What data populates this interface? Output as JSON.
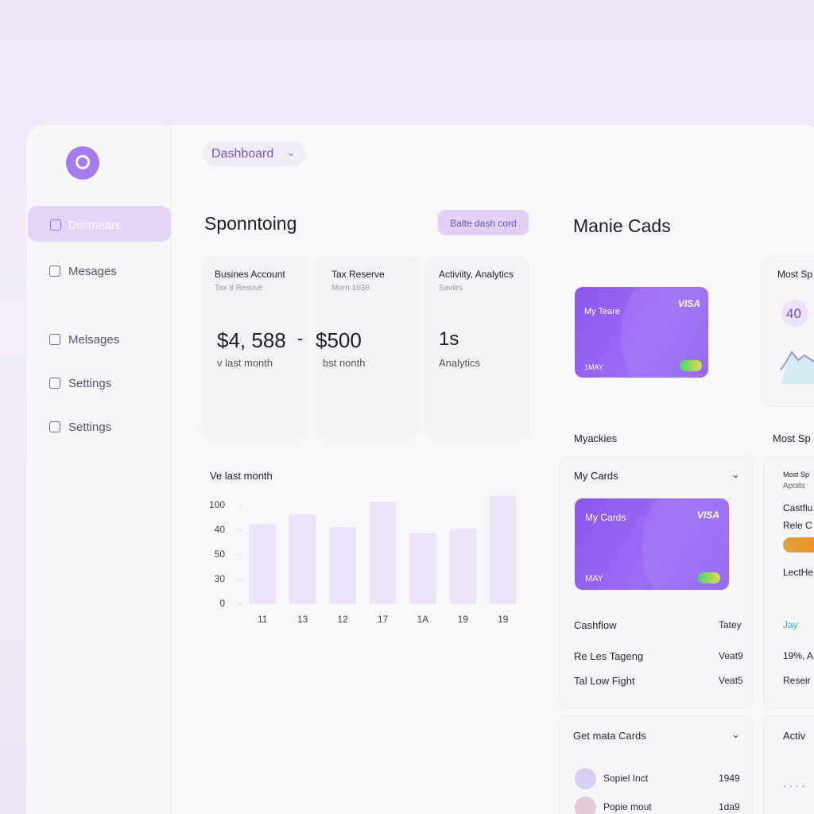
{
  "header": {
    "dashboard": "Dashboard"
  },
  "sidebar": {
    "items": [
      "Disimears",
      "Mesages",
      "Melsages",
      "Settings",
      "Settings"
    ]
  },
  "main": {
    "title": "Sponntoing",
    "button": "Balte dash cord",
    "cards": [
      {
        "title": "Busines Account",
        "subtitle": "Tax 8 Resuve",
        "value": "$4, 588",
        "extra": "-",
        "note": "v last month"
      },
      {
        "title": "Tax Reserve",
        "subtitle": "Morn 1036",
        "value": "$500",
        "note": "bst nonth"
      },
      {
        "title": "Activiity, Analytics",
        "subtitle": "Saviirs",
        "value": "1s",
        "note": "Analytics"
      }
    ]
  },
  "chart_data": {
    "type": "bar",
    "title": "Ve last month",
    "categories": [
      "11",
      "13",
      "12",
      "17",
      "1A",
      "19",
      "19"
    ],
    "values": [
      81,
      91,
      78,
      104,
      72,
      77,
      110
    ],
    "color": "#ece4f8",
    "ylim": [
      0,
      110
    ],
    "y_axis_labels": [
      "0",
      "30",
      "50",
      "40",
      "100"
    ]
  },
  "wallet": {
    "title": "Manie Cads",
    "card": {
      "name": "My Teare",
      "brand": "VISA",
      "expiry": "1MAY"
    },
    "section": "Myackies",
    "panel": {
      "title": "My Cards",
      "card": {
        "name": "My Cards",
        "brand": "VISA",
        "expiry": "MAY"
      },
      "rows": [
        [
          "Cashflow",
          "Tatey"
        ],
        [
          "Re Les Tageng",
          "Veat9"
        ],
        [
          "Tal Low Fight",
          "Veat5"
        ]
      ]
    },
    "contacts": {
      "title": "Get mata Cards",
      "rows": [
        [
          "Sopiel Inct",
          "1949"
        ],
        [
          "Popie mout",
          "1da9"
        ]
      ]
    }
  },
  "side": {
    "top_title": "Most Sp",
    "top_value": "40",
    "mid_title": "Most Sp",
    "items": [
      "Most Sp",
      "Apoits",
      "Castflu",
      "Rele C",
      "LectHe",
      "Jay",
      "19%, A",
      "Reseir",
      "Activ"
    ]
  }
}
